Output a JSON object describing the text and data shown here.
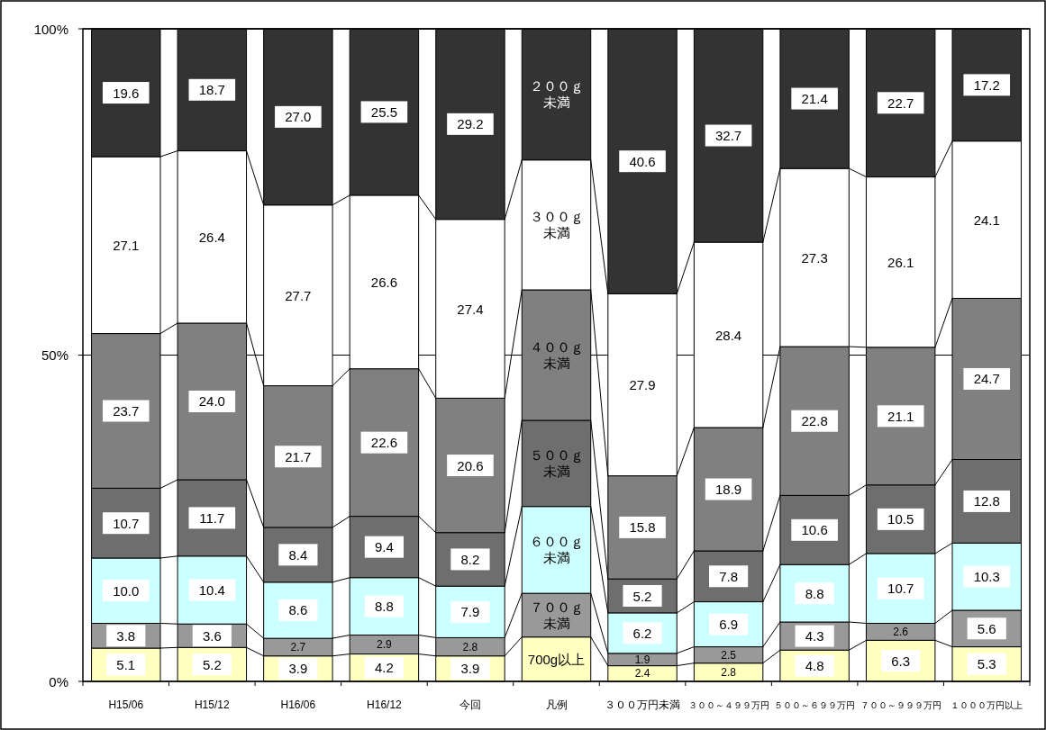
{
  "chart_data": {
    "type": "bar",
    "stacked": true,
    "legend": "center",
    "categories": [
      "H15/06",
      "H15/12",
      "H16/06",
      "H16/12",
      "今回",
      "凡例",
      "３００万円未満",
      "３００～４９９万円",
      "５００～６９９万円",
      "７００～９９９万円",
      "１０００万円以上"
    ],
    "ylim": [
      0,
      100
    ],
    "yticks": [
      {
        "value": 0,
        "label": "0%"
      },
      {
        "value": 50,
        "label": "50%"
      },
      {
        "value": 100,
        "label": "100%"
      }
    ],
    "grid": "y",
    "series": [
      {
        "name": "700g以上",
        "color": "#ffffc0",
        "values": [
          5.1,
          5.2,
          3.9,
          4.2,
          3.9,
          6.8,
          2.4,
          2.8,
          4.8,
          6.3,
          5.3
        ],
        "value_labels": [
          "5.1",
          "5.2",
          "3.9",
          "4.2",
          "3.9",
          null,
          "2.4",
          "2.8",
          "4.8",
          "6.3",
          "5.3"
        ]
      },
      {
        "name": "７００ｇ未満",
        "color": "#999999",
        "values": [
          3.8,
          3.6,
          2.7,
          2.9,
          2.8,
          6.7,
          1.9,
          2.5,
          4.3,
          2.6,
          5.6
        ],
        "value_labels": [
          "3.8",
          "3.6",
          "2.7",
          "2.9",
          "2.8",
          null,
          "1.9",
          "2.5",
          "4.3",
          "2.6",
          "5.6"
        ]
      },
      {
        "name": "６００ｇ未満",
        "color": "#ccffff",
        "values": [
          10.0,
          10.4,
          8.6,
          8.8,
          7.9,
          13.3,
          6.2,
          6.9,
          8.8,
          10.7,
          10.3
        ],
        "value_labels": [
          "10.0",
          "10.4",
          "8.6",
          "8.8",
          "7.9",
          null,
          "6.2",
          "6.9",
          "8.8",
          "10.7",
          "10.3"
        ]
      },
      {
        "name": "５００ｇ未満",
        "color": "#6e6e6e",
        "values": [
          10.7,
          11.7,
          8.4,
          9.4,
          8.2,
          13.2,
          5.2,
          7.8,
          10.6,
          10.5,
          12.8
        ],
        "value_labels": [
          "10.7",
          "11.7",
          "8.4",
          "9.4",
          "8.2",
          null,
          "5.2",
          "7.8",
          "10.6",
          "10.5",
          "12.8"
        ]
      },
      {
        "name": "４００ｇ未満",
        "color": "#808080",
        "values": [
          23.7,
          24.0,
          21.7,
          22.6,
          20.6,
          20.0,
          15.8,
          18.9,
          22.8,
          21.1,
          24.7
        ],
        "value_labels": [
          "23.7",
          "24.0",
          "21.7",
          "22.6",
          "20.6",
          null,
          "15.8",
          "18.9",
          "22.8",
          "21.1",
          "24.7"
        ]
      },
      {
        "name": "３００ｇ未満",
        "color": "#ffffff",
        "values": [
          27.1,
          26.4,
          27.7,
          26.6,
          27.4,
          19.9,
          27.9,
          28.4,
          27.3,
          26.1,
          24.1
        ],
        "value_labels": [
          "27.1",
          "26.4",
          "27.7",
          "26.6",
          "27.4",
          null,
          "27.9",
          "28.4",
          "27.3",
          "26.1",
          "24.1"
        ]
      },
      {
        "name": "２００ｇ未満",
        "color": "#333333",
        "values": [
          19.6,
          18.7,
          27.0,
          25.5,
          29.2,
          20.1,
          40.6,
          32.7,
          21.4,
          22.7,
          17.2
        ],
        "value_labels": [
          "19.6",
          "18.7",
          "27.0",
          "25.5",
          "29.2",
          null,
          "40.6",
          "32.7",
          "21.4",
          "22.7",
          "17.2"
        ]
      }
    ]
  }
}
